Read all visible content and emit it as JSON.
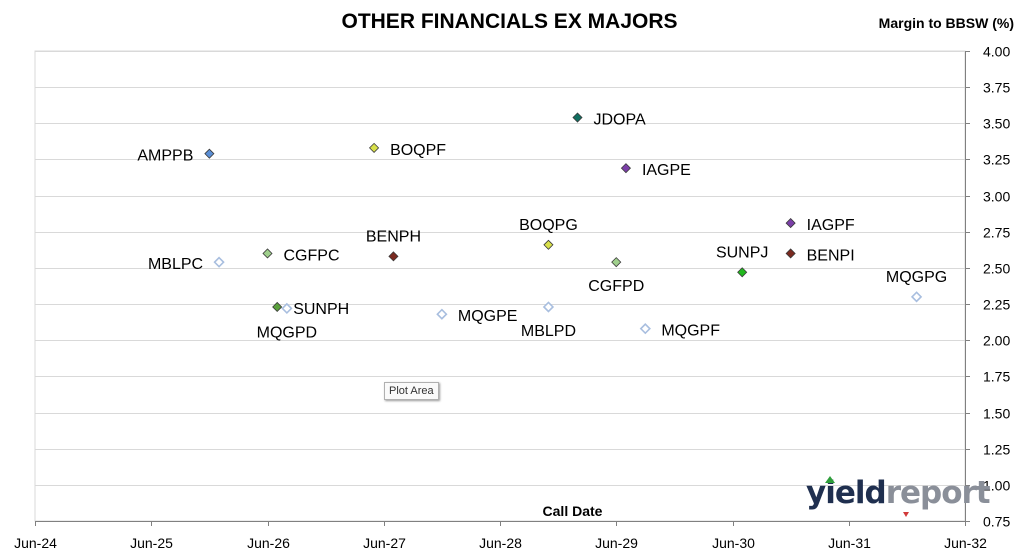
{
  "chart_data": {
    "type": "scatter",
    "title": "OTHER FINANCIALS EX MAJORS",
    "xlabel": "Call Date",
    "ylabel": "Margin to BBSW (%)",
    "x_tick_labels": [
      "Jun-24",
      "Jun-25",
      "Jun-26",
      "Jun-27",
      "Jun-28",
      "Jun-29",
      "Jun-30",
      "Jun-31",
      "Jun-32"
    ],
    "y_tick_labels": [
      "0.75",
      "1.00",
      "1.25",
      "1.50",
      "1.75",
      "2.00",
      "2.25",
      "2.50",
      "2.75",
      "3.00",
      "3.25",
      "3.50",
      "3.75",
      "4.00"
    ],
    "xlim": [
      "Jun-24",
      "Jun-32"
    ],
    "ylim": [
      0.75,
      4.0
    ],
    "y_axis_position": "right",
    "grid": "horizontal",
    "points": [
      {
        "label": "AMPPB",
        "x": "Dec-25",
        "y": 3.29,
        "color": "#5b8fd6",
        "filled": true,
        "label_side": "left"
      },
      {
        "label": "MBLPC",
        "x": "Jan-26",
        "y": 2.54,
        "color": "#a8bedf",
        "filled": false,
        "label_side": "left"
      },
      {
        "label": "CGFPC",
        "x": "Jun-26",
        "y": 2.6,
        "color": "#9fcf8c",
        "filled": true,
        "label_side": "right"
      },
      {
        "label": "SUNPH",
        "x": "Jul-26",
        "y": 2.23,
        "color": "#5aa03c",
        "filled": true,
        "label_side": "right"
      },
      {
        "label": "MQGPD",
        "x": "Aug-26",
        "y": 2.22,
        "color": "#a8bedf",
        "filled": false,
        "label_side": "below"
      },
      {
        "label": "BOQPF",
        "x": "May-27",
        "y": 3.33,
        "color": "#d8e04a",
        "filled": true,
        "label_side": "right"
      },
      {
        "label": "BENPH",
        "x": "Jul-27",
        "y": 2.58,
        "color": "#7a2a20",
        "filled": true,
        "label_side": "above"
      },
      {
        "label": "MQGPE",
        "x": "Dec-27",
        "y": 2.18,
        "color": "#a8bedf",
        "filled": false,
        "label_side": "right"
      },
      {
        "label": "BOQPG",
        "x": "Nov-28",
        "y": 2.66,
        "color": "#d8e04a",
        "filled": true,
        "label_side": "above"
      },
      {
        "label": "MBLPD",
        "x": "Nov-28",
        "y": 2.23,
        "color": "#a8bedf",
        "filled": false,
        "label_side": "below"
      },
      {
        "label": "JDOPA",
        "x": "Feb-29",
        "y": 3.54,
        "color": "#106e60",
        "filled": true,
        "label_side": "right"
      },
      {
        "label": "CGFPD",
        "x": "Jun-29",
        "y": 2.54,
        "color": "#9fcf8c",
        "filled": true,
        "label_side": "below"
      },
      {
        "label": "IAGPE",
        "x": "Jul-29",
        "y": 3.19,
        "color": "#7b3fa8",
        "filled": true,
        "label_side": "right"
      },
      {
        "label": "MQGPF",
        "x": "Sep-29",
        "y": 2.08,
        "color": "#a8bedf",
        "filled": false,
        "label_side": "right"
      },
      {
        "label": "SUNPJ",
        "x": "Jul-30",
        "y": 2.47,
        "color": "#22b81e",
        "filled": true,
        "label_side": "above"
      },
      {
        "label": "IAGPF",
        "x": "Dec-30",
        "y": 2.81,
        "color": "#7b3fa8",
        "filled": true,
        "label_side": "right"
      },
      {
        "label": "BENPI",
        "x": "Dec-30",
        "y": 2.6,
        "color": "#7a2a20",
        "filled": true,
        "label_side": "right"
      },
      {
        "label": "MQGPG",
        "x": "Jan-32",
        "y": 2.3,
        "color": "#a8bedf",
        "filled": false,
        "label_side": "above"
      }
    ]
  },
  "ui": {
    "tooltip": "Plot Area",
    "logo_part1": "yield",
    "logo_part2": "report"
  }
}
